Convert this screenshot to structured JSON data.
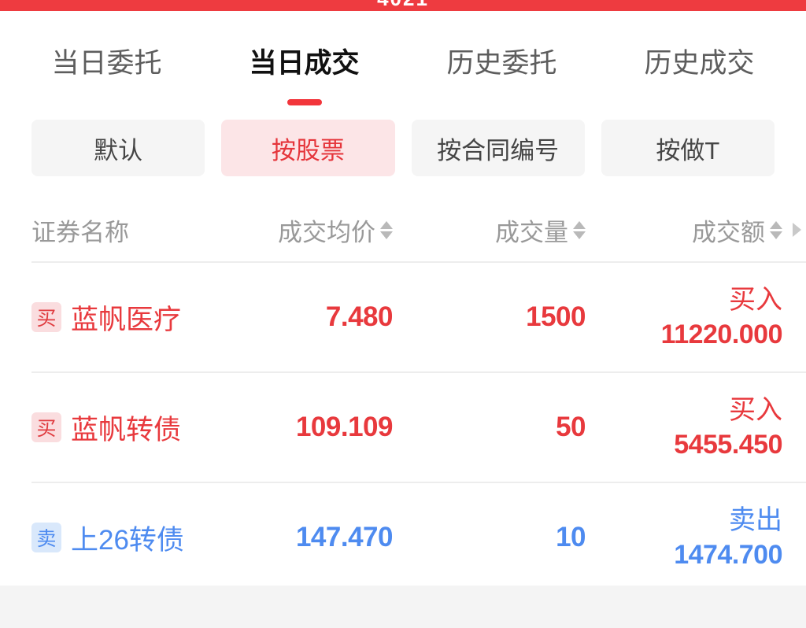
{
  "status_bar": {
    "clipped_text": "4021"
  },
  "tabs": [
    {
      "label": "当日委托",
      "active": false
    },
    {
      "label": "当日成交",
      "active": true
    },
    {
      "label": "历史委托",
      "active": false
    },
    {
      "label": "历史成交",
      "active": false
    }
  ],
  "filters": [
    {
      "label": "默认",
      "active": false
    },
    {
      "label": "按股票",
      "active": true
    },
    {
      "label": "按合同编号",
      "active": false
    },
    {
      "label": "按做T",
      "active": false
    }
  ],
  "table": {
    "columns": [
      {
        "label": "证券名称",
        "sortable": false
      },
      {
        "label": "成交均价",
        "sortable": true
      },
      {
        "label": "成交量",
        "sortable": true
      },
      {
        "label": "成交额",
        "sortable": true
      }
    ],
    "rows": [
      {
        "side_badge": "买",
        "name": "蓝帆医疗",
        "avg_price": "7.480",
        "volume": "1500",
        "direction": "买入",
        "amount": "11220.000",
        "color": "red"
      },
      {
        "side_badge": "买",
        "name": "蓝帆转债",
        "avg_price": "109.109",
        "volume": "50",
        "direction": "买入",
        "amount": "5455.450",
        "color": "red"
      },
      {
        "side_badge": "卖",
        "name": "上26转债",
        "avg_price": "147.470",
        "volume": "10",
        "direction": "卖出",
        "amount": "1474.700",
        "color": "blue"
      }
    ]
  },
  "colors": {
    "top_bar_red": "#ee3b40",
    "buy_red": "#e8393d",
    "sell_blue": "#4e8bf0",
    "badge_buy_bg": "#fadddf",
    "badge_sell_bg": "#d9e8fb",
    "chip_bg": "#f5f5f5",
    "chip_active_bg": "#fce5e7",
    "chip_active_text": "#e5353b",
    "header_gray": "#999999",
    "footer_bg": "#f4f4f4"
  }
}
